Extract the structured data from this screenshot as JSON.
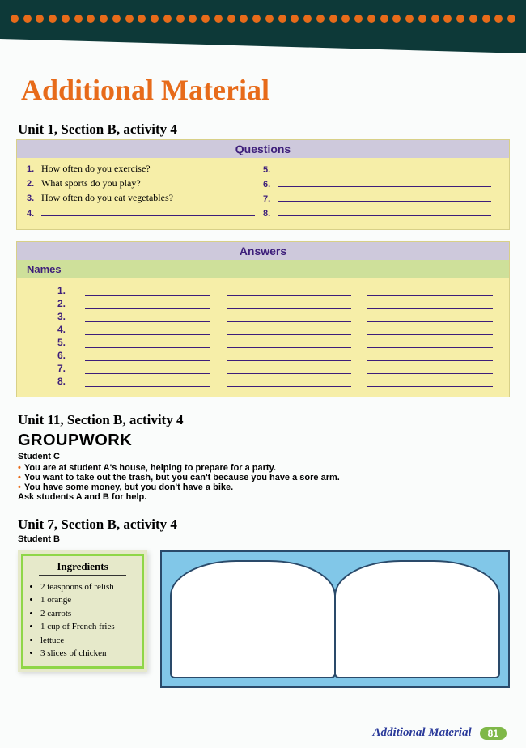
{
  "page_title": "Additional Material",
  "top_dots": 40,
  "unit1": {
    "heading": "Unit 1, Section B, activity 4",
    "questions_header": "Questions",
    "answers_header": "Answers",
    "names_label": "Names",
    "left_questions": [
      {
        "num": "1.",
        "text": "How often do you exercise?"
      },
      {
        "num": "2.",
        "text": "What sports do you play?"
      },
      {
        "num": "3.",
        "text": "How often do you eat vegetables?"
      },
      {
        "num": "4.",
        "text": ""
      }
    ],
    "right_questions": [
      {
        "num": "5.",
        "text": ""
      },
      {
        "num": "6.",
        "text": ""
      },
      {
        "num": "7.",
        "text": ""
      },
      {
        "num": "8.",
        "text": ""
      }
    ],
    "answer_rows": [
      "1.",
      "2.",
      "3.",
      "4.",
      "5.",
      "6.",
      "7.",
      "8."
    ]
  },
  "unit11": {
    "heading": "Unit 11, Section B, activity 4",
    "groupwork": "GROUPWORK",
    "student": "Student C",
    "lines": [
      "You are at student A's house, helping to prepare for a party.",
      "You want to take out the trash, but you can't because you have a sore arm.",
      "You have some money, but you don't have a bike."
    ],
    "ask": "Ask students A and B for help."
  },
  "unit7": {
    "heading": "Unit 7, Section B, activity 4",
    "student": "Student B",
    "ingredients_title": "Ingredients",
    "ingredients": [
      "2 teaspoons of relish",
      "1 orange",
      "2 carrots",
      "1 cup of French fries",
      "lettuce",
      "3 slices of chicken"
    ]
  },
  "footer": {
    "label": "Additional Material",
    "page": "81"
  },
  "colors": {
    "accent": "#e76b1a",
    "header_bg": "#cec9dc",
    "box_bg": "#f6eea8",
    "names_bg": "#cee09a",
    "header_text": "#3d1e7a"
  }
}
